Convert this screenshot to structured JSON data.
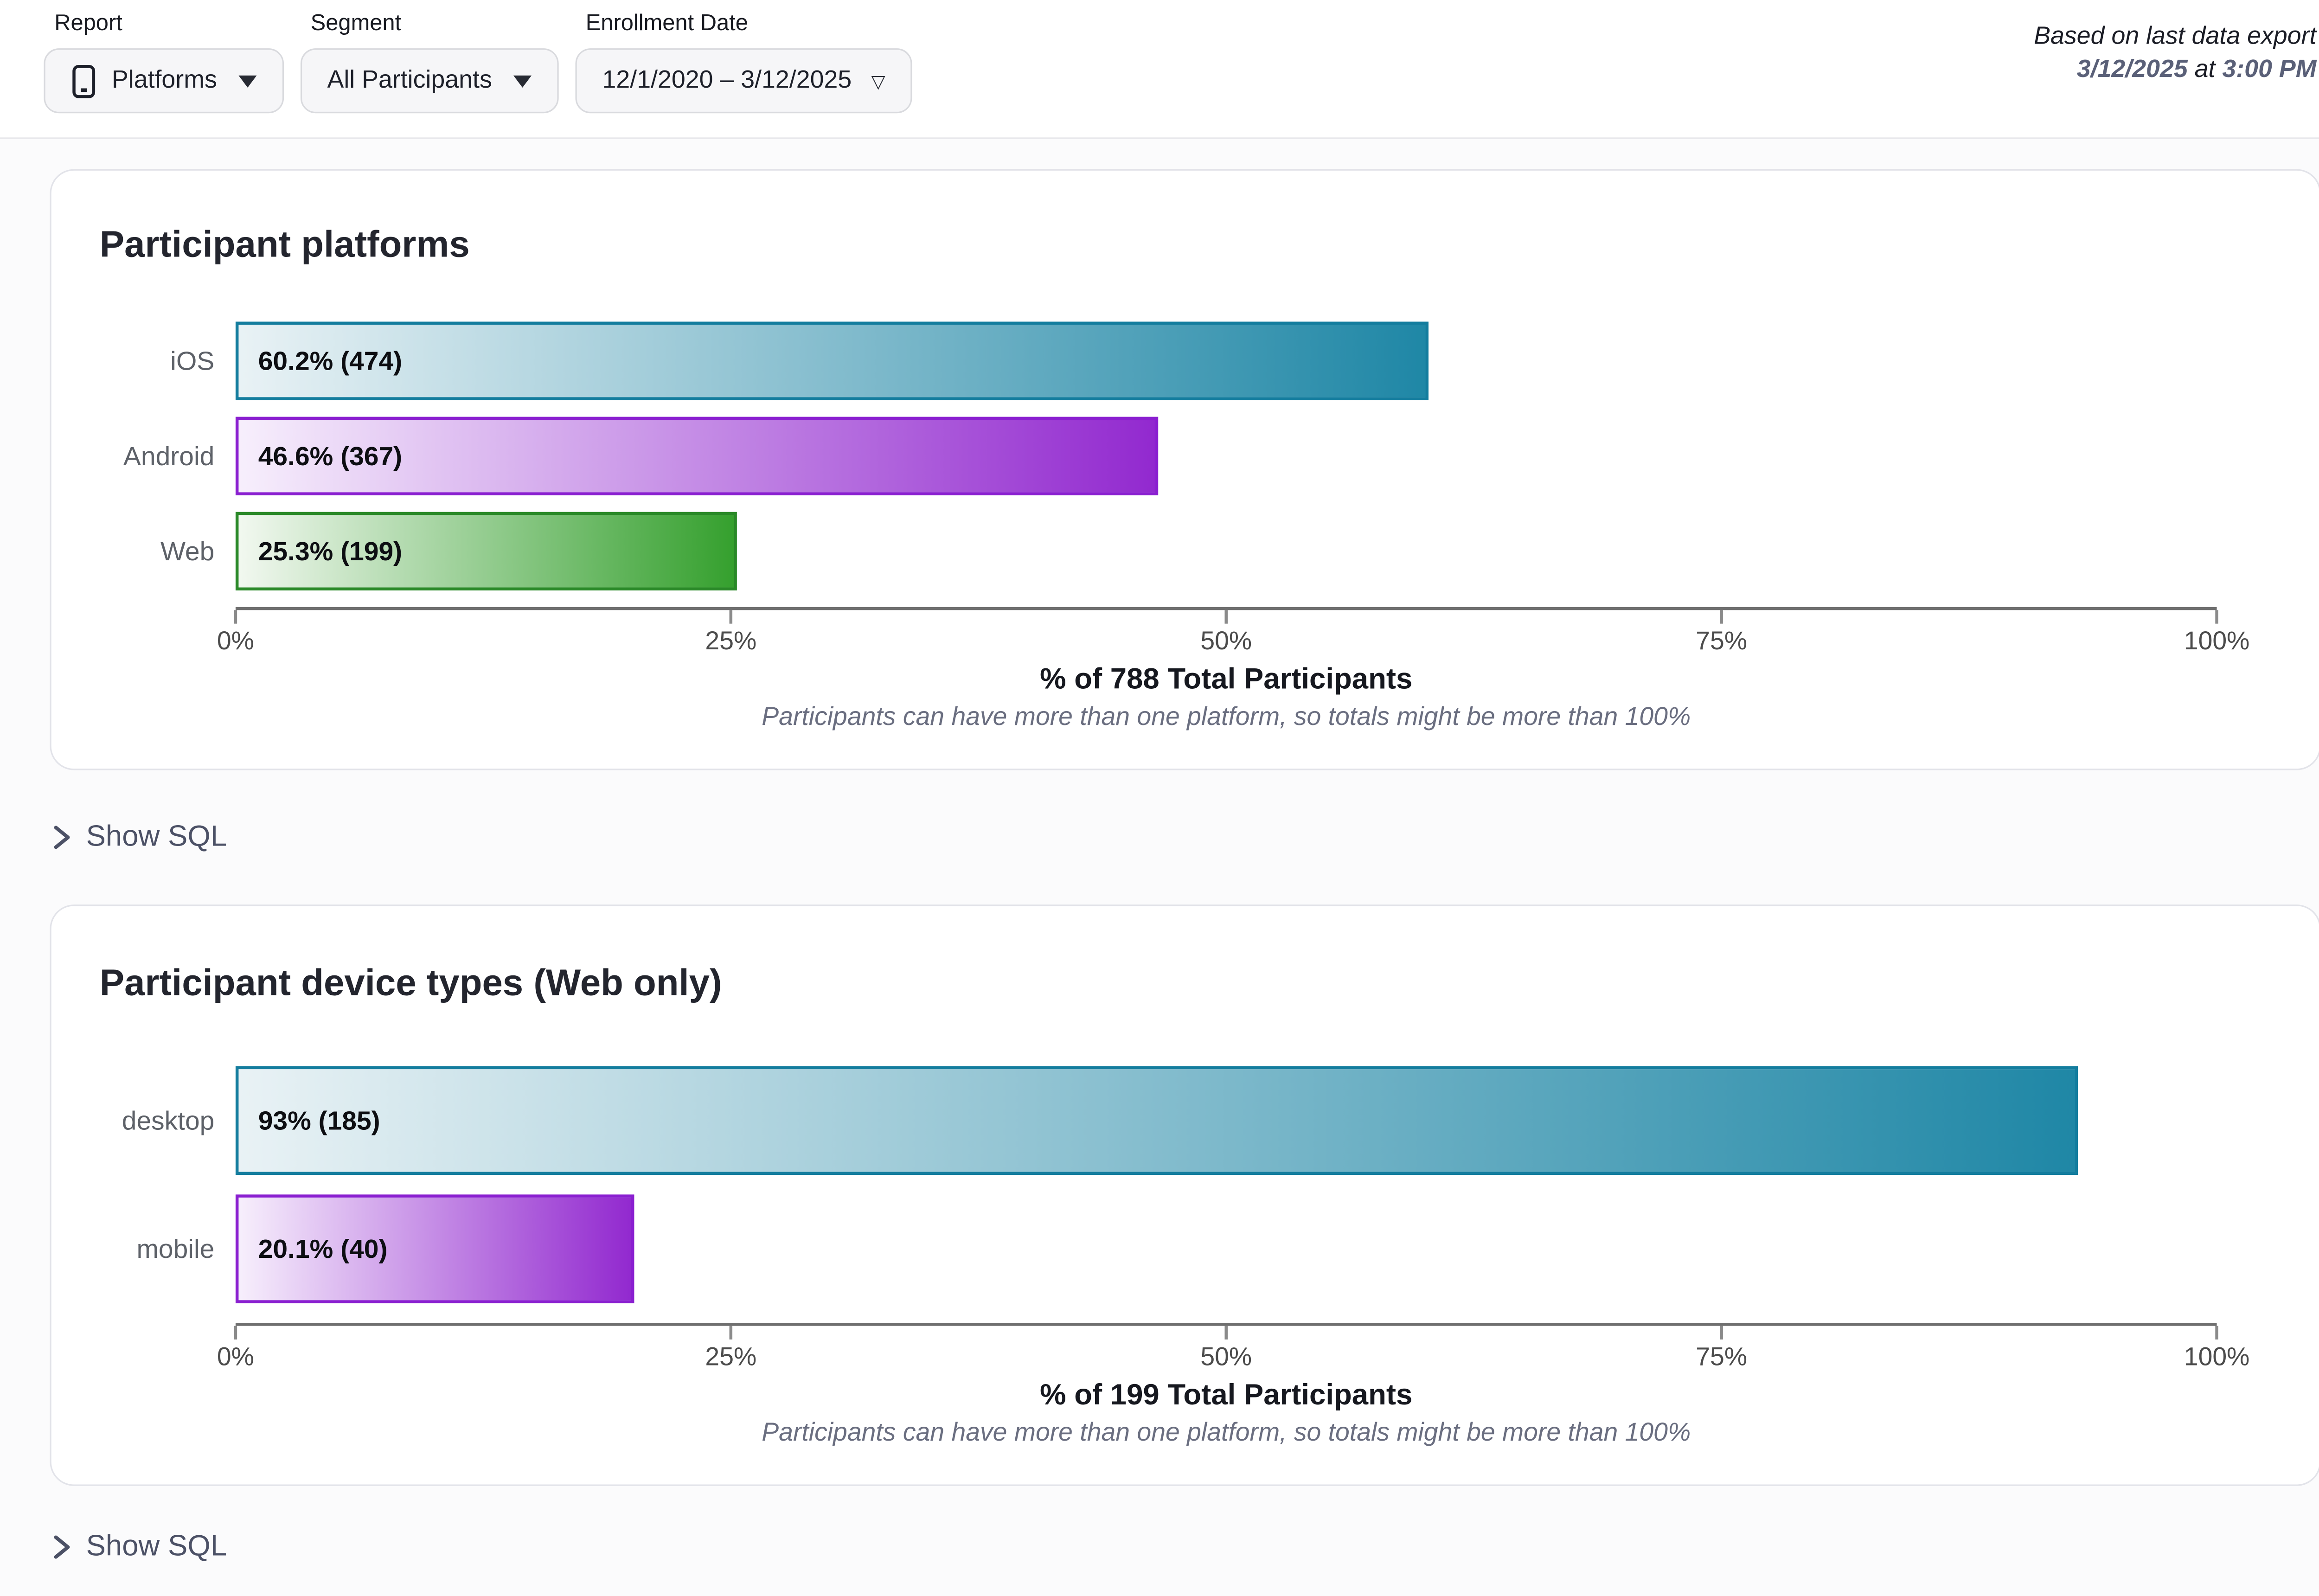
{
  "filters": {
    "report": {
      "label": "Report",
      "value": "Platforms"
    },
    "segment": {
      "label": "Segment",
      "value": "All Participants"
    },
    "enrollment": {
      "label": "Enrollment Date",
      "value": "12/1/2020 – 3/12/2025"
    }
  },
  "export_note": {
    "line1": "Based on last data export",
    "date": "3/12/2025",
    "connector": " at ",
    "time": "3:00 PM"
  },
  "show_sql_label": "Show SQL",
  "icons": {
    "report_icon": "mobile-device-icon",
    "dropdown_caret": "caret-down-icon",
    "show_sql_chevron": "chevron-right-icon"
  },
  "colors": {
    "teal_border": "#147d9e",
    "teal_from": "#e9f2f5",
    "teal_to": "#1f87a6",
    "purple_border": "#8a1fd0",
    "purple_from": "#f7effc",
    "purple_to": "#9229cf",
    "green_border": "#2a8928",
    "green_from": "#f2f8f0",
    "green_to": "#35a02e",
    "axis_line": "#6f6f6f",
    "slate_text": "#4c5166"
  },
  "chart_data": [
    {
      "type": "bar",
      "orientation": "horizontal",
      "title": "Participant platforms",
      "categories": [
        "iOS",
        "Android",
        "Web"
      ],
      "values": [
        60.2,
        46.6,
        25.3
      ],
      "counts": [
        474,
        367,
        199
      ],
      "bar_labels": [
        "60.2% (474)",
        "46.6% (367)",
        "25.3% (199)"
      ],
      "bar_colors": [
        {
          "border": "#147d9e",
          "from": "#e9f2f5",
          "to": "#1f87a6"
        },
        {
          "border": "#8a1fd0",
          "from": "#f7effc",
          "to": "#9229cf"
        },
        {
          "border": "#2a8928",
          "from": "#f2f8f0",
          "to": "#35a02e"
        }
      ],
      "axis_ticks": [
        "0%",
        "25%",
        "50%",
        "75%",
        "100%"
      ],
      "xlim": [
        0,
        100
      ],
      "grid": false,
      "xlabel": "% of 788 Total Participants",
      "note": "Participants can have more than one platform, so totals might be more than 100%"
    },
    {
      "type": "bar",
      "orientation": "horizontal",
      "title": "Participant device types (Web only)",
      "categories": [
        "desktop",
        "mobile"
      ],
      "values": [
        93,
        20.1
      ],
      "counts": [
        185,
        40
      ],
      "bar_labels": [
        "93% (185)",
        "20.1% (40)"
      ],
      "bar_colors": [
        {
          "border": "#147d9e",
          "from": "#e9f2f5",
          "to": "#1f87a6"
        },
        {
          "border": "#8a1fd0",
          "from": "#f7effc",
          "to": "#9229cf"
        }
      ],
      "axis_ticks": [
        "0%",
        "25%",
        "50%",
        "75%",
        "100%"
      ],
      "xlim": [
        0,
        100
      ],
      "grid": false,
      "xlabel": "% of 199 Total Participants",
      "note": "Participants can have more than one platform, so totals might be more than 100%"
    }
  ]
}
